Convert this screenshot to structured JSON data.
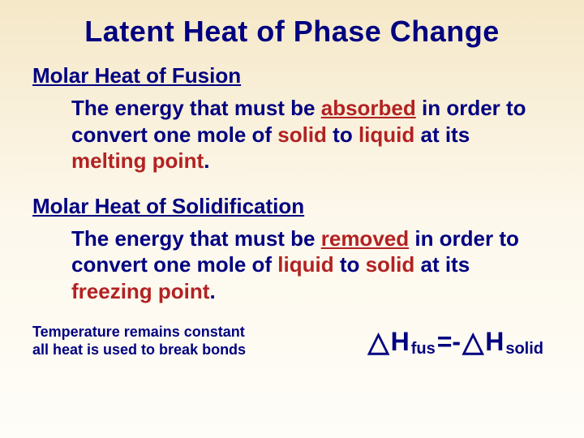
{
  "title": "Latent Heat of Phase Change",
  "section1": {
    "heading": "Molar Heat of Fusion",
    "t1": "The energy that must be ",
    "e1": "absorbed",
    "t2": " in order to convert one mole of ",
    "e2": "solid",
    "t3": " to ",
    "e3": "liquid",
    "t4": " at its ",
    "e4": "melting point",
    "t5": "."
  },
  "section2": {
    "heading": "Molar Heat of Solidification",
    "t1": "The energy that must be ",
    "e1": "removed",
    "t2": " in order to convert one mole of ",
    "e2": "liquid",
    "t3": " to ",
    "e3": "solid",
    "t4": " at its ",
    "e4": "freezing point",
    "t5": "."
  },
  "note": "Temperature remains constant all heat is used to break bonds",
  "eq": {
    "delta": "△",
    "H": "H",
    "sub1": "fus",
    "eqsign": " =- ",
    "sub2": "solid"
  },
  "colors": {
    "text_navy": "#000080",
    "emphasis_red": "#b22222",
    "bg_top": "#f5e8c8",
    "bg_bottom": "#fefdf8"
  },
  "fonts": {
    "family": "Comic Sans MS",
    "title_size_pt": 36,
    "subheading_size_pt": 26,
    "body_size_pt": 26,
    "note_size_pt": 18,
    "equation_size_pt": 32
  }
}
